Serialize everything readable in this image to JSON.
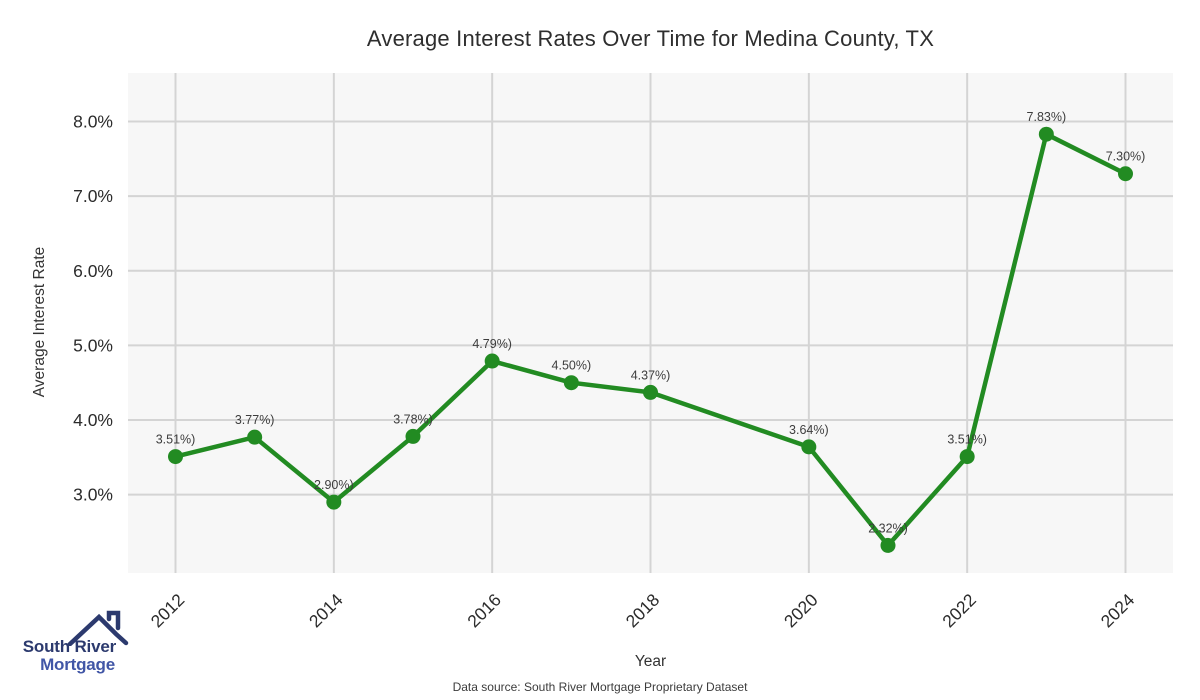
{
  "title": "Average Interest Rates Over Time for Medina County, TX",
  "footer": {
    "source_text": "Data source: South River Mortgage Proprietary Dataset"
  },
  "logo": {
    "line1": "South River",
    "line2": "Mortgage",
    "color1": "#2c3a6e",
    "color2": "#4156a6"
  },
  "chart_data": {
    "type": "line",
    "title": "Average Interest Rates Over Time for Medina County, TX",
    "xlabel": "Year",
    "ylabel": "Average Interest Rate",
    "x": [
      2012,
      2013,
      2014,
      2015,
      2016,
      2017,
      2018,
      2020,
      2021,
      2022,
      2023,
      2024
    ],
    "values": [
      3.51,
      3.77,
      2.9,
      3.78,
      4.79,
      4.5,
      4.37,
      3.64,
      2.32,
      3.51,
      7.83,
      7.3
    ],
    "point_labels": [
      "3.51%)",
      "3.77%)",
      "2.90%)",
      "3.78%)",
      "4.79%)",
      "4.50%)",
      "4.37%)",
      "3.64%)",
      "2.32%)",
      "3.51%)",
      "7.83%)",
      "7.30%)"
    ],
    "xticks": [
      2012,
      2014,
      2016,
      2018,
      2020,
      2022,
      2024
    ],
    "yticks": [
      3,
      4,
      5,
      6,
      7,
      8
    ],
    "ytick_labels": [
      "3.0%",
      "4.0%",
      "5.0%",
      "6.0%",
      "7.0%",
      "8.0%"
    ],
    "xlim": [
      2011.4,
      2024.6
    ],
    "ylim": [
      1.95,
      8.65
    ],
    "grid": true,
    "legend": false,
    "line_color": "#228B22",
    "panel_bg": "#f7f7f7",
    "grid_color": "#d4d4d4",
    "tick_color": "#2b2b2b",
    "label_color": "#3d3d3d"
  }
}
